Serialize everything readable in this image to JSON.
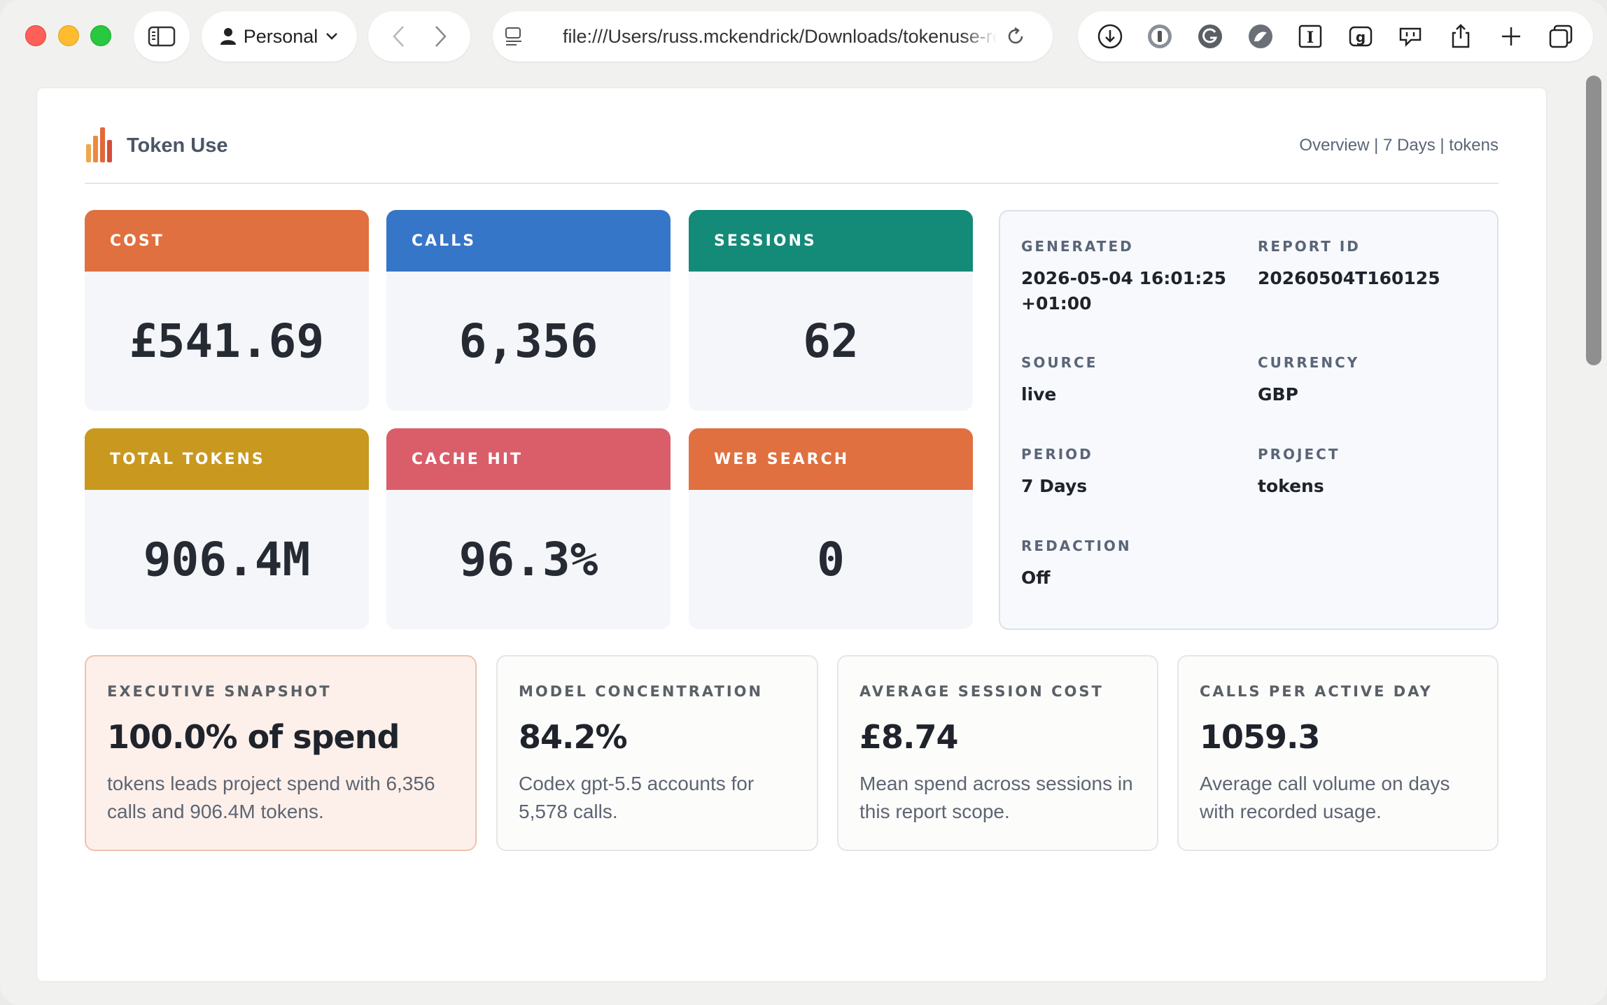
{
  "browser": {
    "profile_label": "Personal",
    "url": "file:///Users/russ.mckendrick/Downloads/tokenuse-report.html"
  },
  "header": {
    "brand": "Token Use",
    "breadcrumb": "Overview | 7 Days | tokens"
  },
  "stats": [
    {
      "label": "COST",
      "value": "£541.69",
      "color": "#e07040"
    },
    {
      "label": "CALLS",
      "value": "6,356",
      "color": "#3676c8"
    },
    {
      "label": "SESSIONS",
      "value": "62",
      "color": "#148a78"
    },
    {
      "label": "TOTAL TOKENS",
      "value": "906.4M",
      "color": "#c9991f"
    },
    {
      "label": "CACHE HIT",
      "value": "96.3%",
      "color": "#d95e6a"
    },
    {
      "label": "WEB SEARCH",
      "value": "0",
      "color": "#e07040"
    }
  ],
  "meta": {
    "generated": {
      "label": "GENERATED",
      "value": "2026-05-04 16:01:25 +01:00"
    },
    "report_id": {
      "label": "REPORT ID",
      "value": "20260504T160125"
    },
    "source": {
      "label": "SOURCE",
      "value": "live"
    },
    "currency": {
      "label": "CURRENCY",
      "value": "GBP"
    },
    "period": {
      "label": "PERIOD",
      "value": "7 Days"
    },
    "project": {
      "label": "PROJECT",
      "value": "tokens"
    },
    "redaction": {
      "label": "REDACTION",
      "value": "Off"
    }
  },
  "insights": [
    {
      "label": "EXECUTIVE SNAPSHOT",
      "value": "100.0% of spend",
      "desc": "tokens leads project spend with 6,356 calls and 906.4M tokens."
    },
    {
      "label": "MODEL CONCENTRATION",
      "value": "84.2%",
      "desc": "Codex gpt-5.5 accounts for 5,578 calls."
    },
    {
      "label": "AVERAGE SESSION COST",
      "value": "£8.74",
      "desc": "Mean spend across sessions in this report scope."
    },
    {
      "label": "CALLS PER ACTIVE DAY",
      "value": "1059.3",
      "desc": "Average call volume on days with recorded usage."
    }
  ]
}
